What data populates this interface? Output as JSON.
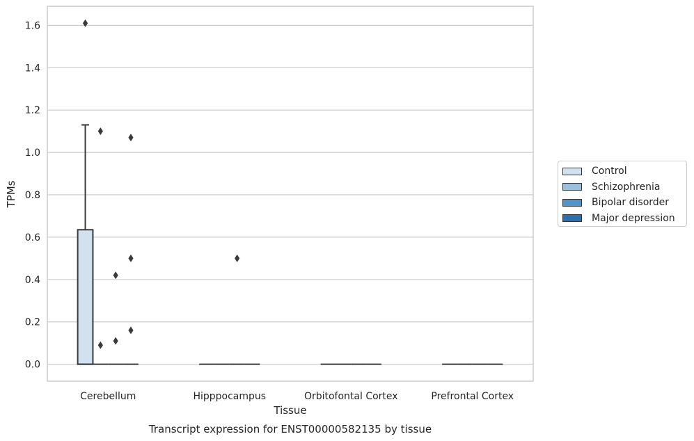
{
  "chart_data": {
    "type": "box",
    "title": "Transcript expression for ENST00000582135 by tissue",
    "xlabel": "Tissue",
    "ylabel": "TPMs",
    "ylim": [
      -0.08,
      1.69
    ],
    "yticks": [
      "0.0",
      "0.2",
      "0.4",
      "0.6",
      "0.8",
      "1.0",
      "1.2",
      "1.4",
      "1.6"
    ],
    "grid": "horizontal",
    "legend_position": "right",
    "categories": [
      "Cerebellum",
      "Hipppocampus",
      "Orbitofontal Cortex",
      "Prefrontal Cortex"
    ],
    "series": [
      {
        "name": "Control",
        "color": "#d1e1f0",
        "boxes": [
          {
            "q1": 0.0,
            "median": 0.0,
            "q3": 0.635,
            "whisker_low": 0.0,
            "whisker_high": 1.13,
            "outliers": [
              1.61
            ]
          },
          {
            "q1": 0.0,
            "median": 0.0,
            "q3": 0.0,
            "whisker_low": 0.0,
            "whisker_high": 0.0,
            "outliers": []
          },
          {
            "q1": 0.0,
            "median": 0.0,
            "q3": 0.0,
            "whisker_low": 0.0,
            "whisker_high": 0.0,
            "outliers": []
          },
          {
            "q1": 0.0,
            "median": 0.0,
            "q3": 0.0,
            "whisker_low": 0.0,
            "whisker_high": 0.0,
            "outliers": []
          }
        ]
      },
      {
        "name": "Schizophrenia",
        "color": "#9ac0da",
        "boxes": [
          {
            "q1": 0.0,
            "median": 0.0,
            "q3": 0.0,
            "whisker_low": 0.0,
            "whisker_high": 0.0,
            "outliers": [
              0.09,
              1.1
            ]
          },
          {
            "q1": 0.0,
            "median": 0.0,
            "q3": 0.0,
            "whisker_low": 0.0,
            "whisker_high": 0.0,
            "outliers": []
          },
          {
            "q1": 0.0,
            "median": 0.0,
            "q3": 0.0,
            "whisker_low": 0.0,
            "whisker_high": 0.0,
            "outliers": []
          },
          {
            "q1": 0.0,
            "median": 0.0,
            "q3": 0.0,
            "whisker_low": 0.0,
            "whisker_high": 0.0,
            "outliers": []
          }
        ]
      },
      {
        "name": "Bipolar disorder",
        "color": "#5594c6",
        "boxes": [
          {
            "q1": 0.0,
            "median": 0.0,
            "q3": 0.0,
            "whisker_low": 0.0,
            "whisker_high": 0.0,
            "outliers": [
              0.11,
              0.42
            ]
          },
          {
            "q1": 0.0,
            "median": 0.0,
            "q3": 0.0,
            "whisker_low": 0.0,
            "whisker_high": 0.0,
            "outliers": [
              0.5
            ]
          },
          {
            "q1": 0.0,
            "median": 0.0,
            "q3": 0.0,
            "whisker_low": 0.0,
            "whisker_high": 0.0,
            "outliers": []
          },
          {
            "q1": 0.0,
            "median": 0.0,
            "q3": 0.0,
            "whisker_low": 0.0,
            "whisker_high": 0.0,
            "outliers": []
          }
        ]
      },
      {
        "name": "Major depression",
        "color": "#2d6eaf",
        "boxes": [
          {
            "q1": 0.0,
            "median": 0.0,
            "q3": 0.0,
            "whisker_low": 0.0,
            "whisker_high": 0.0,
            "outliers": [
              0.16,
              0.5,
              1.07
            ]
          },
          {
            "q1": 0.0,
            "median": 0.0,
            "q3": 0.0,
            "whisker_low": 0.0,
            "whisker_high": 0.0,
            "outliers": []
          },
          {
            "q1": 0.0,
            "median": 0.0,
            "q3": 0.0,
            "whisker_low": 0.0,
            "whisker_high": 0.0,
            "outliers": []
          },
          {
            "q1": 0.0,
            "median": 0.0,
            "q3": 0.0,
            "whisker_low": 0.0,
            "whisker_high": 0.0,
            "outliers": []
          }
        ]
      }
    ]
  }
}
